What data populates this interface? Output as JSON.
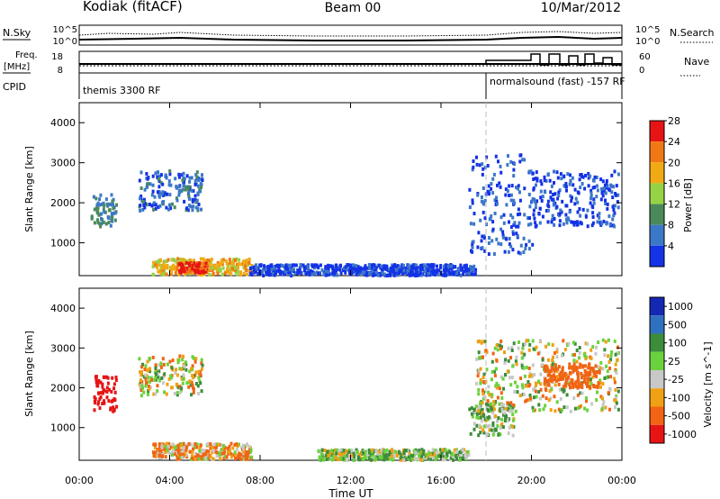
{
  "header": {
    "station": "Kodiak (fitACF)",
    "beam": "Beam 00",
    "date": "10/Mar/2012"
  },
  "summary_panel": {
    "nsky_label": "N.Sky",
    "nsearch_label": "N.Search",
    "freq_label_1": "Freq.",
    "freq_label_2": "[MHz]",
    "nave_label": "Nave",
    "cpid_label": "CPID",
    "noise_ticks": [
      "10^5",
      "10^0"
    ],
    "freq_ticks": [
      "18",
      "8"
    ],
    "nave_ticks": [
      "60",
      "0"
    ],
    "cpid_segments": [
      {
        "label": "themis 3300 RF",
        "start_hour": 0,
        "end_hour": 18
      },
      {
        "label": "normalsound (fast) -157 RF",
        "start_hour": 18,
        "end_hour": 24
      }
    ]
  },
  "chart_data": [
    {
      "type": "heatmap",
      "name": "power",
      "xlabel": "",
      "ylabel": "Slant Range [km]",
      "xlim": [
        0,
        24
      ],
      "ylim": [
        180,
        4500
      ],
      "y_ticks": [
        1000,
        2000,
        3000,
        4000
      ],
      "colorbar": {
        "label": "Power [dB]",
        "range": [
          0,
          32
        ],
        "ticks": [
          "4",
          "8",
          "12",
          "16",
          "20",
          "24",
          "28"
        ],
        "colors": [
          "#1432e6",
          "#3c78c8",
          "#4a8a5a",
          "#96d246",
          "#f0aa14",
          "#f07814",
          "#e61414"
        ]
      },
      "regions": [
        {
          "t0": 0.5,
          "t1": 1.6,
          "r0": 1400,
          "r1": 2200,
          "value": 12
        },
        {
          "t0": 2.6,
          "t1": 5.4,
          "r0": 1800,
          "r1": 2800,
          "value": 9
        },
        {
          "t0": 3.2,
          "t1": 7.6,
          "r0": 200,
          "r1": 600,
          "value": 22
        },
        {
          "t0": 4.3,
          "t1": 5.6,
          "r0": 250,
          "r1": 500,
          "value": 30
        },
        {
          "t0": 7.5,
          "t1": 17.5,
          "r0": 180,
          "r1": 450,
          "value": 6
        },
        {
          "t0": 17.2,
          "t1": 20.0,
          "r0": 700,
          "r1": 3200,
          "value": 8
        },
        {
          "t0": 20.0,
          "t1": 23.8,
          "r0": 1400,
          "r1": 2800,
          "value": 7
        }
      ]
    },
    {
      "type": "heatmap",
      "name": "velocity",
      "xlabel": "Time UT",
      "ylabel": "Slant Range [km]",
      "xlim": [
        0,
        24
      ],
      "ylim": [
        180,
        4500
      ],
      "x_ticks": [
        "00:00",
        "04:00",
        "08:00",
        "12:00",
        "16:00",
        "20:00",
        "00:00"
      ],
      "y_ticks": [
        1000,
        2000,
        3000,
        4000
      ],
      "colorbar": {
        "label": "Velocity [m s^-1]",
        "ticks": [
          "1000",
          "500",
          "100",
          "25",
          "-25",
          "-100",
          "-500",
          "-1000"
        ],
        "colors": [
          "#1428b4",
          "#2f70c0",
          "#3c8c3c",
          "#6ad23c",
          "#c8c8c8",
          "#f0a014",
          "#f06414",
          "#e61414"
        ]
      },
      "regions": [
        {
          "t0": 0.6,
          "t1": 1.6,
          "r0": 1400,
          "r1": 2300,
          "value": -800
        },
        {
          "t0": 2.6,
          "t1": 5.4,
          "r0": 1800,
          "r1": 2800,
          "value": 0
        },
        {
          "t0": 3.2,
          "t1": 7.6,
          "r0": 200,
          "r1": 600,
          "value": -80
        },
        {
          "t0": 10.5,
          "t1": 17.2,
          "r0": 180,
          "r1": 450,
          "value": 60
        },
        {
          "t0": 17.2,
          "t1": 19.2,
          "r0": 800,
          "r1": 1600,
          "value": 70
        },
        {
          "t0": 17.5,
          "t1": 23.8,
          "r0": 1400,
          "r1": 3200,
          "value": 0
        },
        {
          "t0": 20.5,
          "t1": 23.0,
          "r0": 2000,
          "r1": 2600,
          "value": -300
        }
      ]
    }
  ]
}
